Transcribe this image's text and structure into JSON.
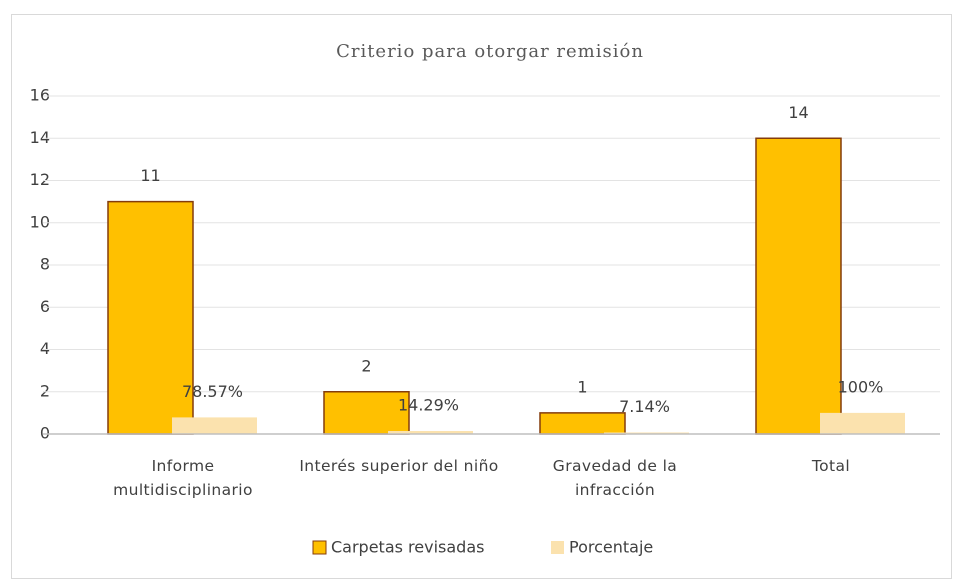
{
  "chart_data": {
    "type": "bar",
    "title": "Criterio para otorgar remisión",
    "categories": [
      "Informe multidisciplinario",
      "Interés superior del niño",
      "Gravedad de la infracción",
      "Total"
    ],
    "series": [
      {
        "name": "Carpetas revisadas",
        "color": "#ffc000",
        "values": [
          11,
          2,
          1,
          14
        ],
        "value_labels": [
          "11",
          "2",
          "1",
          "14"
        ]
      },
      {
        "name": "Porcentaje",
        "color": "#fbe2ae",
        "values": [
          0.7857,
          0.1429,
          0.0714,
          1
        ],
        "value_labels": [
          "78.57%",
          "14.29%",
          "7.14%",
          "100%"
        ]
      }
    ],
    "ylim": [
      0,
      16
    ],
    "yticks": [
      0,
      2,
      4,
      6,
      8,
      10,
      12,
      14,
      16
    ],
    "grid": true,
    "legend": "bottom"
  }
}
